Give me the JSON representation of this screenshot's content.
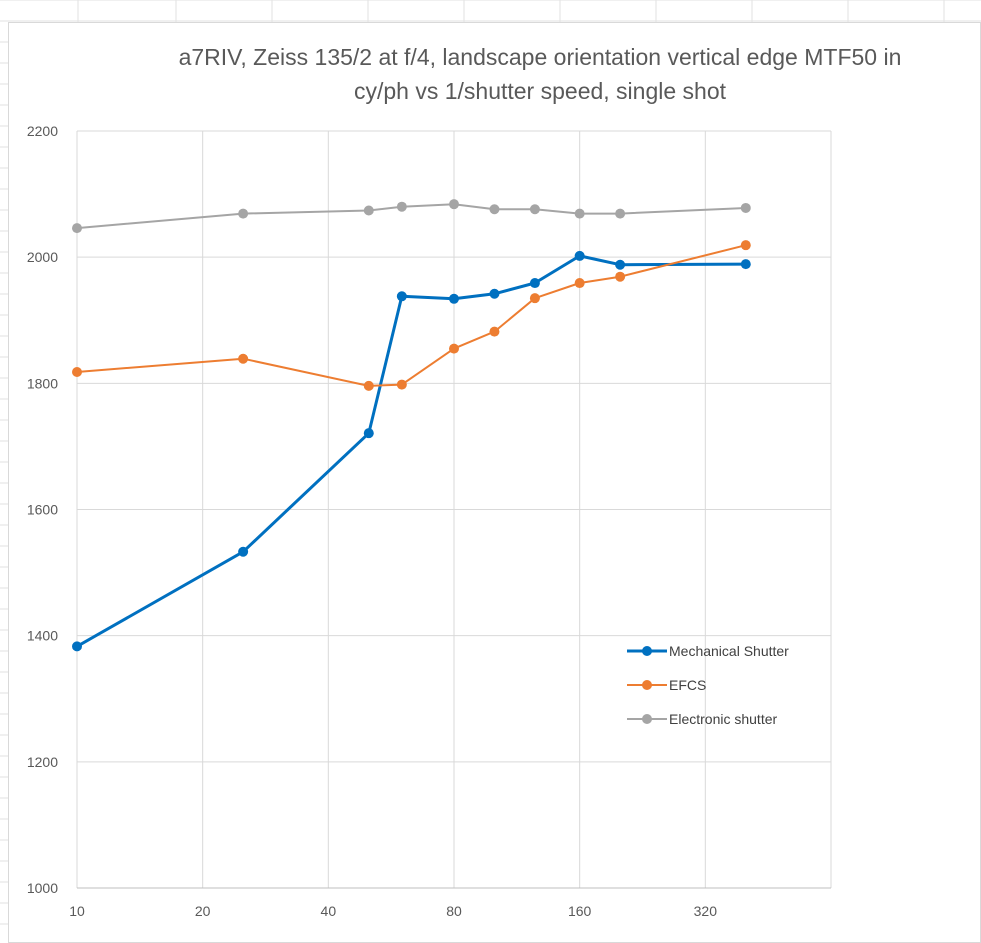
{
  "chart_data": {
    "type": "line",
    "title": "a7RIV, Zeiss 135/2 at f/4, landscape orientation vertical edge MTF50 in\ncy/ph vs 1/shutter speed, single shot",
    "xlabel": "",
    "ylabel": "",
    "x_scale": "log2",
    "x_ticks": [
      10,
      20,
      40,
      80,
      160,
      320
    ],
    "x_range": [
      10,
      640
    ],
    "y_ticks": [
      1000,
      1200,
      1400,
      1600,
      1800,
      2000,
      2200
    ],
    "ylim": [
      1000,
      2200
    ],
    "grid": true,
    "legend_position": "right",
    "x": [
      10,
      25,
      50,
      60,
      80,
      100,
      125,
      160,
      200,
      400
    ],
    "series": [
      {
        "name": "Mechanical Shutter",
        "color": "#0070C0",
        "values": [
          1383,
          1533,
          1721,
          1938,
          1934,
          1942,
          1959,
          2002,
          1988,
          1989
        ]
      },
      {
        "name": "EFCS",
        "color": "#ED7D31",
        "values": [
          1818,
          1839,
          1796,
          1798,
          1855,
          1882,
          1935,
          1959,
          1969,
          2019
        ]
      },
      {
        "name": "Electronic shutter",
        "color": "#A5A5A5",
        "values": [
          2046,
          2069,
          2074,
          2080,
          2084,
          2076,
          2076,
          2069,
          2069,
          2078
        ]
      }
    ]
  }
}
